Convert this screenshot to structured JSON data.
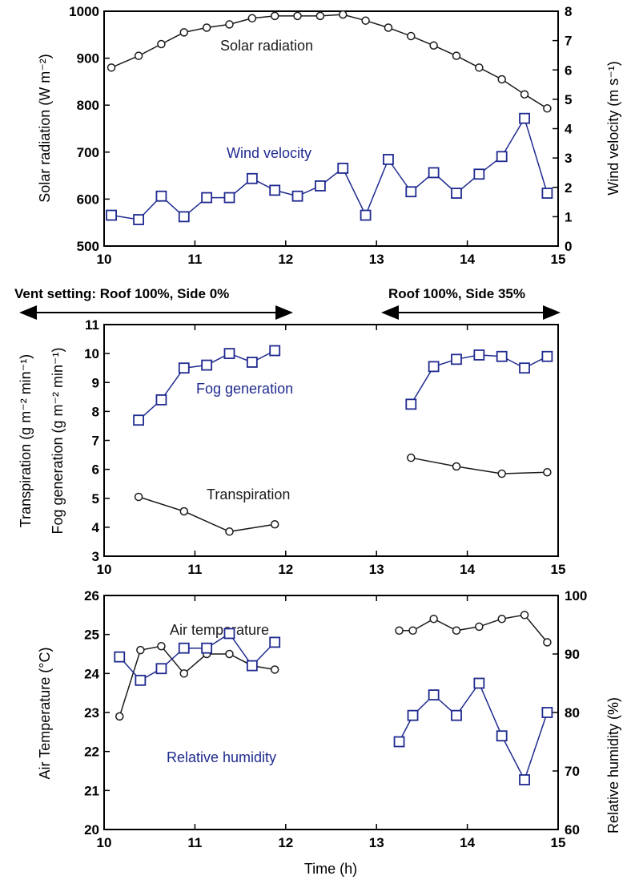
{
  "vent": {
    "label_left": "Vent setting: Roof 100%, Side 0%",
    "label_right": "Roof 100%, Side 35%"
  },
  "colors": {
    "black": "#1a1a1a",
    "blue": "#1f2a8f"
  },
  "chart_data": [
    {
      "type": "line",
      "panel": "top",
      "xlim": [
        10,
        15
      ],
      "x_ticks": [
        "10",
        "11",
        "12",
        "13",
        "14",
        "15"
      ],
      "ylabel": "Solar radiation (W m⁻²)",
      "ylim": [
        500,
        1000
      ],
      "y_ticks": [
        "500",
        "600",
        "700",
        "800",
        "900",
        "1000"
      ],
      "y2label": "Wind velocity (m s⁻¹)",
      "y2lim": [
        0,
        8
      ],
      "y2_ticks": [
        "0",
        "1",
        "2",
        "3",
        "4",
        "5",
        "6",
        "7",
        "8"
      ],
      "series": [
        {
          "name": "Solar radiation",
          "axis": "left",
          "marker": "circle",
          "color": "black",
          "x": [
            10.08,
            10.38,
            10.63,
            10.88,
            11.13,
            11.38,
            11.63,
            11.88,
            12.13,
            12.38,
            12.63,
            12.88,
            13.13,
            13.38,
            13.63,
            13.88,
            14.13,
            14.38,
            14.63,
            14.88
          ],
          "y": [
            880,
            905,
            930,
            955,
            965,
            972,
            985,
            990,
            990,
            990,
            993,
            980,
            965,
            947,
            927,
            905,
            880,
            855,
            823,
            793
          ]
        },
        {
          "name": "Wind velocity",
          "axis": "right",
          "marker": "square",
          "color": "blue",
          "x": [
            10.08,
            10.38,
            10.63,
            10.88,
            11.13,
            11.38,
            11.63,
            11.88,
            12.13,
            12.38,
            12.63,
            12.88,
            13.13,
            13.38,
            13.63,
            13.88,
            14.13,
            14.38,
            14.63,
            14.88
          ],
          "y": [
            1.05,
            0.9,
            1.7,
            1.0,
            1.65,
            1.65,
            2.3,
            1.9,
            1.7,
            2.05,
            2.65,
            1.05,
            2.95,
            1.85,
            2.5,
            1.8,
            2.45,
            3.05,
            4.35,
            1.8
          ]
        }
      ]
    },
    {
      "type": "line",
      "panel": "middle",
      "xlim": [
        10,
        15
      ],
      "x_ticks": [
        "10",
        "11",
        "12",
        "13",
        "14",
        "15"
      ],
      "ylabel": "Transpiration (g m⁻² min⁻¹)",
      "ylabel2": "Fog generation (g m⁻² min⁻¹)",
      "ylim": [
        3,
        11
      ],
      "y_ticks": [
        "3",
        "4",
        "5",
        "6",
        "7",
        "8",
        "9",
        "10",
        "11"
      ],
      "series": [
        {
          "name": "Fog generation",
          "marker": "square",
          "color": "blue",
          "segments": [
            {
              "x": [
                10.38,
                10.63,
                10.88,
                11.13,
                11.38,
                11.63,
                11.88
              ],
              "y": [
                7.7,
                8.4,
                9.5,
                9.6,
                10.0,
                9.7,
                10.1
              ]
            },
            {
              "x": [
                13.38,
                13.63,
                13.88,
                14.13,
                14.38,
                14.63,
                14.88
              ],
              "y": [
                8.25,
                9.55,
                9.8,
                9.95,
                9.9,
                9.5,
                9.9
              ]
            }
          ]
        },
        {
          "name": "Transpiration",
          "marker": "circle",
          "color": "black",
          "segments": [
            {
              "x": [
                10.38,
                10.88,
                11.38,
                11.88
              ],
              "y": [
                5.05,
                4.55,
                3.85,
                4.1
              ]
            },
            {
              "x": [
                13.38,
                13.88,
                14.38,
                14.88
              ],
              "y": [
                6.4,
                6.1,
                5.85,
                5.9
              ]
            }
          ]
        }
      ]
    },
    {
      "type": "line",
      "panel": "bottom",
      "xlabel": "Time (h)",
      "xlim": [
        10,
        15
      ],
      "x_ticks": [
        "10",
        "11",
        "12",
        "13",
        "14",
        "15"
      ],
      "ylabel": "Air Temperature (°C)",
      "ylim": [
        20,
        26
      ],
      "y_ticks": [
        "20",
        "21",
        "22",
        "23",
        "24",
        "25",
        "26"
      ],
      "y2label": "Relative humidity (%)",
      "y2lim": [
        60,
        100
      ],
      "y2_ticks": [
        "60",
        "70",
        "80",
        "90",
        "100"
      ],
      "series": [
        {
          "name": "Air temperature",
          "axis": "left",
          "marker": "circle",
          "color": "black",
          "segments": [
            {
              "x": [
                10.17,
                10.4,
                10.63,
                10.88,
                11.13,
                11.38,
                11.63,
                11.88
              ],
              "y": [
                22.9,
                24.6,
                24.7,
                24.0,
                24.5,
                24.5,
                24.2,
                24.1
              ]
            },
            {
              "x": [
                13.25,
                13.4,
                13.63,
                13.88,
                14.13,
                14.38,
                14.63,
                14.88
              ],
              "y": [
                25.1,
                25.1,
                25.4,
                25.1,
                25.2,
                25.4,
                25.5,
                24.8
              ]
            }
          ]
        },
        {
          "name": "Relative humidity",
          "axis": "right",
          "marker": "square",
          "color": "blue",
          "segments": [
            {
              "x": [
                10.17,
                10.4,
                10.63,
                10.88,
                11.13,
                11.38,
                11.63,
                11.88
              ],
              "y": [
                89.5,
                85.5,
                87.5,
                91.0,
                91.0,
                93.5,
                88.0,
                92.0
              ]
            },
            {
              "x": [
                13.25,
                13.4,
                13.63,
                13.88,
                14.13,
                14.38,
                14.63,
                14.88
              ],
              "y": [
                75.0,
                79.5,
                83.0,
                79.5,
                85.0,
                76.0,
                68.5,
                80.0
              ]
            }
          ]
        }
      ]
    }
  ]
}
